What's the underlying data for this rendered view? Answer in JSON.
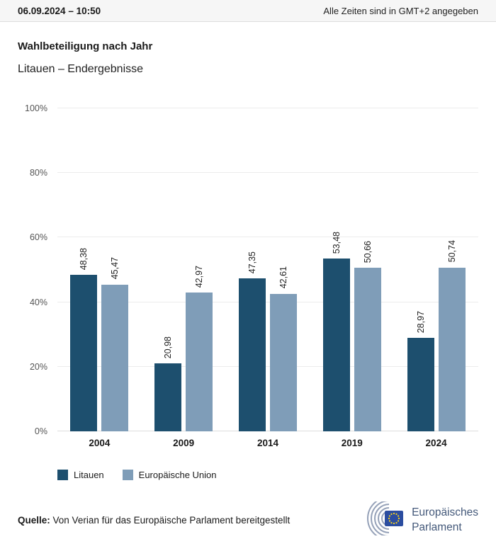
{
  "header": {
    "datetime": "06.09.2024 – 10:50",
    "timezone_note": "Alle Zeiten sind in GMT+2 angegeben"
  },
  "title": "Wahlbeteiligung nach Jahr",
  "subtitle": "Litauen – Endergebnisse",
  "chart_data": {
    "type": "bar",
    "categories": [
      "2004",
      "2009",
      "2014",
      "2019",
      "2024"
    ],
    "series": [
      {
        "name": "Litauen",
        "color": "#1d4f6e",
        "values": [
          48.38,
          20.98,
          47.35,
          53.48,
          28.97
        ]
      },
      {
        "name": "Europäische Union",
        "color": "#7f9db8",
        "values": [
          45.47,
          42.97,
          42.61,
          50.66,
          50.74
        ]
      }
    ],
    "value_labels": [
      [
        "48,38",
        "20,98",
        "47,35",
        "53,48",
        "28,97"
      ],
      [
        "45,47",
        "42,97",
        "42,61",
        "50,66",
        "50,74"
      ]
    ],
    "ytick_values": [
      0,
      20,
      40,
      60,
      80,
      100
    ],
    "ytick_labels": [
      "0%",
      "20%",
      "40%",
      "60%",
      "80%",
      "100%"
    ],
    "ylim": [
      0,
      100
    ],
    "grid": true,
    "legend_position": "bottom",
    "value_label_format": "comma-decimal, rotated 90°"
  },
  "footer": {
    "source_label": "Quelle:",
    "source_text": "Von Verian für das Europäische Parlament bereitgestellt",
    "logo_line1": "Europäisches",
    "logo_line2": "Parlament"
  }
}
